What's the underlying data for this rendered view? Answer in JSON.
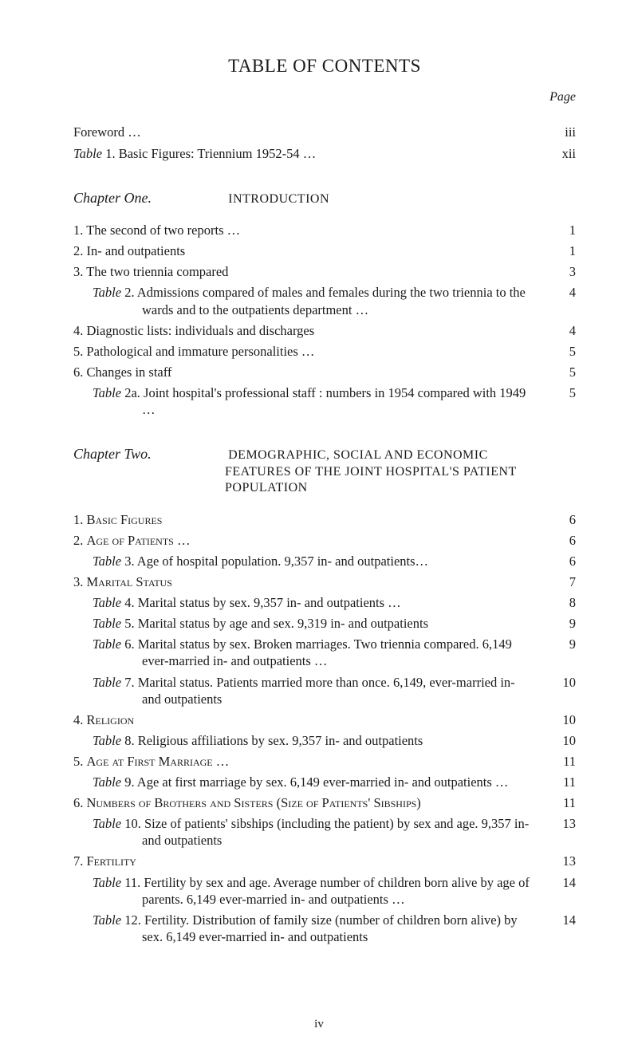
{
  "title": "TABLE OF CONTENTS",
  "page_label": "Page",
  "front": [
    {
      "text": "Foreword …",
      "page": "iii"
    },
    {
      "text": "Table 1. Basic Figures: Triennium 1952-54   …",
      "page": "xii",
      "italicPrefix": "Table"
    }
  ],
  "chapter1": {
    "name": "Chapter One.",
    "title": "INTRODUCTION",
    "items": [
      {
        "text": "1. The second of two reports …",
        "page": "1"
      },
      {
        "text": "2. In- and outpatients",
        "page": "1"
      },
      {
        "text": "3. The two triennia compared",
        "page": "3"
      },
      {
        "text": "Table 2. Admissions compared of males and females during the two triennia to the wards and to the outpatients department …",
        "page": "4",
        "indent": true,
        "italicPrefix": "Table"
      },
      {
        "text": "4. Diagnostic lists: individuals and discharges",
        "page": "4"
      },
      {
        "text": "5. Pathological and immature personalities …",
        "page": "5"
      },
      {
        "text": "6. Changes in staff",
        "page": "5"
      },
      {
        "text": "Table 2a. Joint hospital's professional staff : numbers in 1954 compared with 1949   …",
        "page": "5",
        "indent": true,
        "italicPrefix": "Table"
      }
    ]
  },
  "chapter2": {
    "name": "Chapter Two.",
    "title": "DEMOGRAPHIC, SOCIAL AND ECONOMIC",
    "title_cont": "FEATURES OF THE JOINT HOSPITAL'S PATIENT POPULATION",
    "items": [
      {
        "text": "1. Basic Figures",
        "page": "6",
        "sc": true
      },
      {
        "text": "2. Age of Patients   …",
        "page": "6",
        "sc": true
      },
      {
        "text": "Table 3.  Age of hospital population. 9,357 in- and outpatients…",
        "page": "6",
        "indent": true,
        "italicPrefix": "Table"
      },
      {
        "text": "3. Marital Status",
        "page": "7",
        "sc": true
      },
      {
        "text": "Table 4.  Marital status by sex. 9,357 in- and outpatients   …",
        "page": "8",
        "indent": true,
        "italicPrefix": "Table"
      },
      {
        "text": "Table 5.  Marital status by age and sex. 9,319 in- and outpatients",
        "page": "9",
        "indent": true,
        "italicPrefix": "Table"
      },
      {
        "text": "Table 6.  Marital status by sex. Broken marriages. Two triennia compared. 6,149 ever-married in- and outpatients   …",
        "page": "9",
        "indent": true,
        "italicPrefix": "Table"
      },
      {
        "text": "Table 7.  Marital status. Patients married more than once. 6,149, ever-married in- and outpatients",
        "page": "10",
        "indent": true,
        "italicPrefix": "Table"
      },
      {
        "text": "4. Religion",
        "page": "10",
        "sc": true
      },
      {
        "text": "Table 8.  Religious affiliations by sex. 9,357 in- and outpatients",
        "page": "10",
        "indent": true,
        "italicPrefix": "Table"
      },
      {
        "text": "5. Age at First Marriage …",
        "page": "11",
        "sc": true
      },
      {
        "text": "Table 9.  Age at first marriage by sex. 6,149 ever-married in- and outpatients …",
        "page": "11",
        "indent": true,
        "italicPrefix": "Table"
      },
      {
        "text": "6. Numbers of Brothers and Sisters (Size of Patients' Sibships)",
        "page": "11",
        "sc": true
      },
      {
        "text": "Table 10. Size of patients' sibships (including the patient) by sex and age. 9,357 in- and outpatients",
        "page": "13",
        "indent": true,
        "italicPrefix": "Table"
      },
      {
        "text": "7. Fertility",
        "page": "13",
        "sc": true
      },
      {
        "text": "Table 11. Fertility by sex and age. Average number of children born alive by age of parents. 6,149 ever-married in- and outpatients …",
        "page": "14",
        "indent": true,
        "italicPrefix": "Table"
      },
      {
        "text": "Table 12. Fertility. Distribution of family size (number of children born alive) by sex. 6,149 ever-married in- and outpatients",
        "page": "14",
        "indent": true,
        "italicPrefix": "Table"
      }
    ]
  },
  "footer": "iv"
}
